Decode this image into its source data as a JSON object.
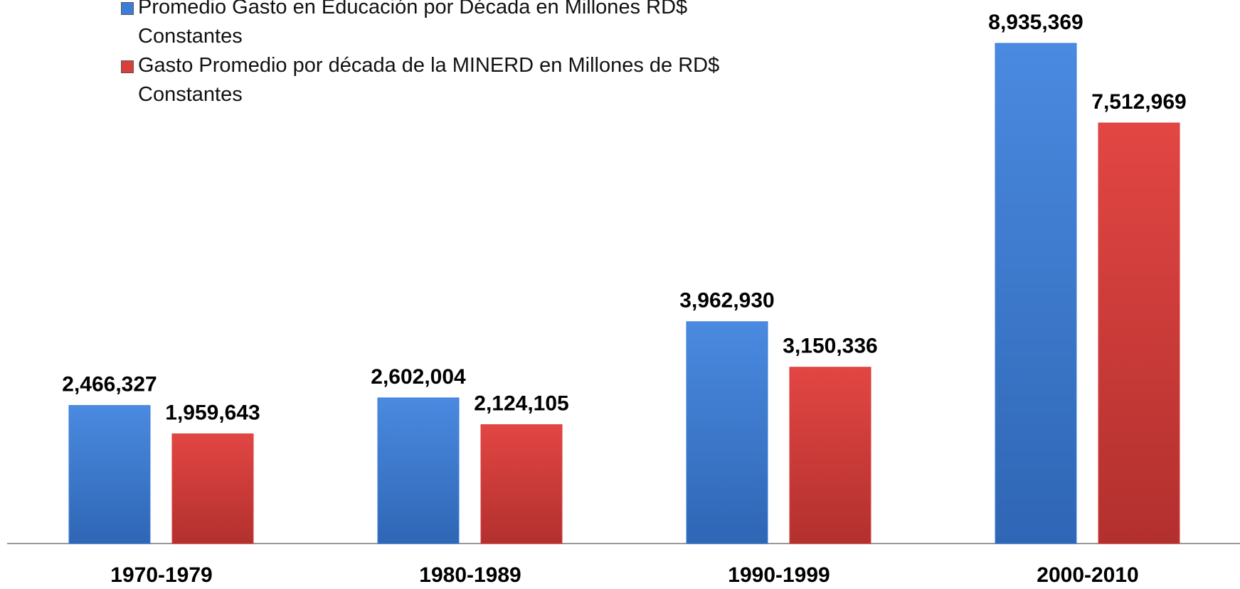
{
  "chart_data": {
    "type": "bar",
    "categories": [
      "1970-1979",
      "1980-1989",
      "1990-1999",
      "2000-2010"
    ],
    "series": [
      {
        "name": "Promedio Gasto en Educación por Década en Millones RD$ Constantes",
        "color": "#3b7dd8",
        "values": [
          2466327,
          2602004,
          3962930,
          8935369
        ],
        "value_labels": [
          "2,466,327",
          "2,602,004",
          "3,962,930",
          "8,935,369"
        ]
      },
      {
        "name": "Gasto Promedio por década de la MINERD en Millones de RD$ Constantes",
        "color": "#d93e3b",
        "values": [
          1959643,
          2124105,
          3150336,
          7512969
        ],
        "value_labels": [
          "1,959,643",
          "2,124,105",
          "3,150,336",
          "7,512,969"
        ]
      }
    ]
  }
}
